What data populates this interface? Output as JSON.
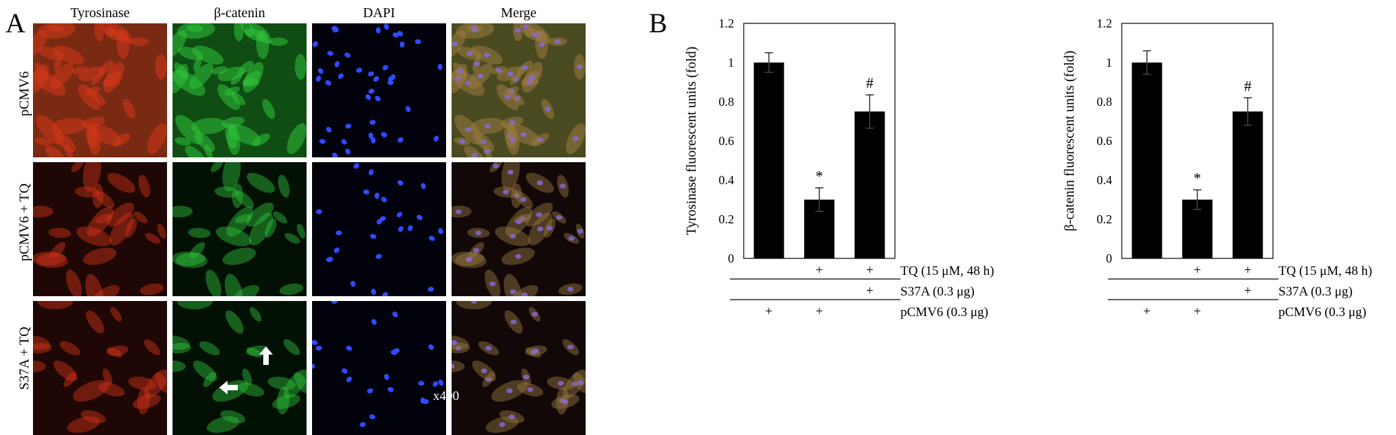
{
  "panels": {
    "a_letter": "A",
    "b_letter": "B"
  },
  "microscopy": {
    "columns": [
      "Tyrosinase",
      "β-catenin",
      "DAPI",
      "Merge"
    ],
    "rows": [
      "pCMV6",
      "pCMV6 + TQ",
      "S37A + TQ"
    ],
    "magnification": "x400",
    "stain_colors": {
      "tyrosinase": "#d2361a",
      "beta_catenin": "#2fc23a",
      "dapi": "#2f4bff"
    }
  },
  "chart_data": [
    {
      "type": "bar",
      "ylabel": "Tyrosinase fluorescent units (fold)",
      "ylim": [
        0,
        1.2
      ],
      "yticks": [
        "0",
        "0.2",
        "0.4",
        "0.6",
        "0.8",
        "1",
        "1.2"
      ],
      "values": [
        1.0,
        0.3,
        0.75
      ],
      "errors": [
        0.05,
        0.06,
        0.085
      ],
      "significance": [
        "",
        "*",
        "#"
      ],
      "treatments": [
        {
          "label": "TQ (15 μM, 48 h)",
          "marks": [
            "",
            "+",
            "+"
          ]
        },
        {
          "label": "S37A (0.3 μg)",
          "marks": [
            "",
            "",
            "+"
          ]
        },
        {
          "label": "pCMV6 (0.3 μg)",
          "marks": [
            "+",
            "+",
            ""
          ]
        }
      ],
      "bar_color": "#000000"
    },
    {
      "type": "bar",
      "ylabel": "β-catenin fluorescent units (fold)",
      "ylim": [
        0,
        1.2
      ],
      "yticks": [
        "0",
        "0.2",
        "0.4",
        "0.6",
        "0.8",
        "1",
        "1.2"
      ],
      "values": [
        1.0,
        0.3,
        0.75
      ],
      "errors": [
        0.06,
        0.05,
        0.07
      ],
      "significance": [
        "",
        "*",
        "#"
      ],
      "treatments": [
        {
          "label": "TQ (15 μM, 48 h)",
          "marks": [
            "",
            "+",
            "+"
          ]
        },
        {
          "label": "S37A (0.3 μg)",
          "marks": [
            "",
            "",
            "+"
          ]
        },
        {
          "label": "pCMV6 (0.3 μg)",
          "marks": [
            "+",
            "+",
            ""
          ]
        }
      ],
      "bar_color": "#000000"
    }
  ]
}
